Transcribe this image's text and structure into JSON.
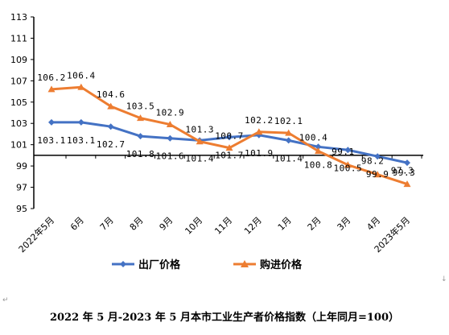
{
  "chart_data": {
    "type": "line",
    "categories": [
      "2022年5月",
      "6月",
      "7月",
      "8月",
      "9月",
      "10月",
      "11月",
      "12月",
      "1月",
      "2月",
      "3月",
      "4月",
      "2023年5月"
    ],
    "series": [
      {
        "name": "出厂价格",
        "color": "#4472C4",
        "marker": "diamond",
        "values": [
          103.1,
          103.1,
          102.7,
          101.8,
          101.6,
          101.4,
          101.7,
          101.9,
          101.4,
          100.8,
          100.5,
          99.9,
          99.3
        ],
        "labels": [
          "103.1",
          "103.1",
          "102.7",
          "101.8",
          "101.6",
          "101.4",
          "101.7",
          "101.9",
          "101.4",
          "100.8",
          "100.5",
          "99.9",
          "99.3"
        ]
      },
      {
        "name": "购进价格",
        "color": "#ED7D31",
        "marker": "triangle",
        "values": [
          106.2,
          106.4,
          104.6,
          103.5,
          102.9,
          101.3,
          100.7,
          102.2,
          102.1,
          100.4,
          99.1,
          98.2,
          97.3
        ],
        "labels": [
          "106.2",
          "106.4",
          "104.6",
          "103.5",
          "102.9",
          "101.3",
          "100.7",
          "102.2",
          "102.1",
          "100.4",
          "99.1",
          "98.2",
          "97.3"
        ]
      }
    ],
    "ylim": [
      95,
      113
    ],
    "yticks": [
      95,
      97,
      99,
      101,
      103,
      105,
      107,
      109,
      111,
      113
    ],
    "ytick_labels": [
      "95",
      "97",
      "99",
      "101",
      "103",
      "105",
      "107",
      "109",
      "111",
      "113"
    ],
    "x_axis_at": 100,
    "grid": false,
    "legend_position": "bottom",
    "caption": "2022 年 5 月-2023 年 5 月本市工业生产者价格指数（上年同月=100）"
  },
  "marks": {
    "left": "↵",
    "right": "↓"
  }
}
